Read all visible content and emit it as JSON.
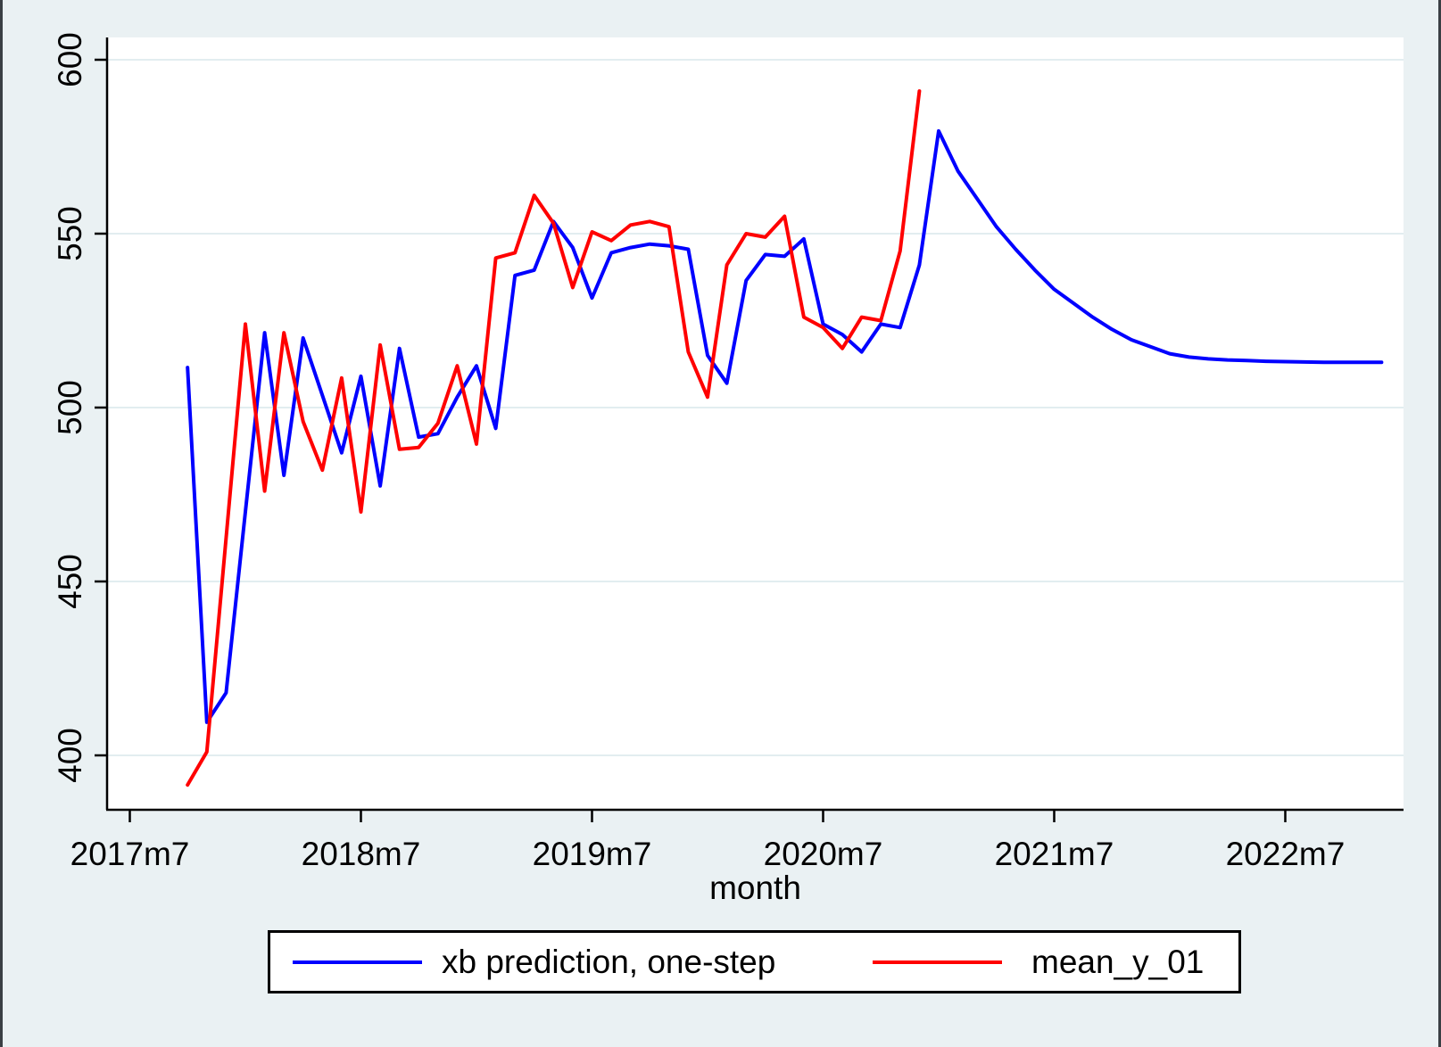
{
  "window": {
    "background_color": "#eaf1f3",
    "plot_background_color": "#ffffff",
    "gridline_color": "#e2edf0",
    "axis_color": "#000000",
    "edge_strip_color": "#3a3f44"
  },
  "chart_data": {
    "type": "line",
    "title": "",
    "xlabel": "month",
    "ylabel": "",
    "grid": true,
    "x_axis": {
      "tick_labels": [
        "2017m7",
        "2018m7",
        "2019m7",
        "2020m7",
        "2021m7",
        "2022m7"
      ]
    },
    "y_axis": {
      "tick_labels": [
        "400",
        "450",
        "500",
        "550",
        "600"
      ],
      "range_shown": [
        384,
        606
      ]
    },
    "legend": {
      "position": "bottom",
      "items": [
        "xb prediction, one-step",
        "mean_y_01"
      ]
    },
    "series": [
      {
        "name": "xb prediction, one-step",
        "color": "#0000ff",
        "points": [
          [
            "2017m10",
            511.5
          ],
          [
            "2017m11",
            409.5
          ],
          [
            "2017m12",
            418
          ],
          [
            "2018m1",
            470
          ],
          [
            "2018m2",
            521.5
          ],
          [
            "2018m3",
            480.5
          ],
          [
            "2018m4",
            520
          ],
          [
            "2018m5",
            503.5
          ],
          [
            "2018m6",
            487
          ],
          [
            "2018m7",
            509
          ],
          [
            "2018m8",
            477.5
          ],
          [
            "2018m9",
            517
          ],
          [
            "2018m10",
            491.5
          ],
          [
            "2018m11",
            492.5
          ],
          [
            "2018m12",
            503
          ],
          [
            "2019m1",
            512
          ],
          [
            "2019m2",
            494
          ],
          [
            "2019m3",
            538
          ],
          [
            "2019m4",
            539.5
          ],
          [
            "2019m5",
            553.5
          ],
          [
            "2019m6",
            546
          ],
          [
            "2019m7",
            531.5
          ],
          [
            "2019m8",
            544.5
          ],
          [
            "2019m9",
            546
          ],
          [
            "2019m10",
            547
          ],
          [
            "2019m11",
            546.5
          ],
          [
            "2019m12",
            545.5
          ],
          [
            "2020m1",
            515
          ],
          [
            "2020m2",
            507
          ],
          [
            "2020m3",
            536.5
          ],
          [
            "2020m4",
            544
          ],
          [
            "2020m5",
            543.5
          ],
          [
            "2020m6",
            548.5
          ],
          [
            "2020m7",
            524
          ],
          [
            "2020m8",
            521
          ],
          [
            "2020m9",
            516
          ],
          [
            "2020m10",
            524
          ],
          [
            "2020m11",
            523
          ],
          [
            "2020m12",
            541
          ],
          [
            "2021m1",
            579.5
          ],
          [
            "2021m2",
            568
          ],
          [
            "2021m3",
            560
          ],
          [
            "2021m4",
            552
          ],
          [
            "2021m5",
            545.5
          ],
          [
            "2021m6",
            539.5
          ],
          [
            "2021m7",
            534
          ],
          [
            "2021m8",
            530
          ],
          [
            "2021m9",
            526
          ],
          [
            "2021m10",
            522.5
          ],
          [
            "2021m11",
            519.5
          ],
          [
            "2021m12",
            517.5
          ],
          [
            "2022m1",
            515.5
          ],
          [
            "2022m2",
            514.5
          ],
          [
            "2022m3",
            514
          ],
          [
            "2022m4",
            513.7
          ],
          [
            "2022m5",
            513.5
          ],
          [
            "2022m6",
            513.3
          ],
          [
            "2022m7",
            513.2
          ],
          [
            "2022m8",
            513.1
          ],
          [
            "2022m9",
            513
          ],
          [
            "2022m10",
            513
          ],
          [
            "2022m11",
            513
          ],
          [
            "2022m12",
            513
          ]
        ]
      },
      {
        "name": "mean_y_01",
        "color": "#ff0000",
        "points": [
          [
            "2017m10",
            391.5
          ],
          [
            "2017m11",
            401
          ],
          [
            "2017m12",
            462.5
          ],
          [
            "2018m1",
            524
          ],
          [
            "2018m2",
            476
          ],
          [
            "2018m3",
            521.5
          ],
          [
            "2018m4",
            496
          ],
          [
            "2018m5",
            482
          ],
          [
            "2018m6",
            508.5
          ],
          [
            "2018m7",
            470
          ],
          [
            "2018m8",
            518
          ],
          [
            "2018m9",
            488
          ],
          [
            "2018m10",
            488.5
          ],
          [
            "2018m11",
            495.5
          ],
          [
            "2018m12",
            512
          ],
          [
            "2019m1",
            489.5
          ],
          [
            "2019m2",
            543
          ],
          [
            "2019m3",
            544.5
          ],
          [
            "2019m4",
            561
          ],
          [
            "2019m5",
            553
          ],
          [
            "2019m6",
            534.5
          ],
          [
            "2019m7",
            550.5
          ],
          [
            "2019m8",
            548
          ],
          [
            "2019m9",
            552.5
          ],
          [
            "2019m10",
            553.5
          ],
          [
            "2019m11",
            552
          ],
          [
            "2019m12",
            516
          ],
          [
            "2020m1",
            503
          ],
          [
            "2020m2",
            541
          ],
          [
            "2020m3",
            550
          ],
          [
            "2020m4",
            549
          ],
          [
            "2020m5",
            555
          ],
          [
            "2020m6",
            526
          ],
          [
            "2020m7",
            523
          ],
          [
            "2020m8",
            517
          ],
          [
            "2020m9",
            526
          ],
          [
            "2020m10",
            525
          ],
          [
            "2020m11",
            545
          ],
          [
            "2020m12",
            591
          ]
        ]
      }
    ]
  }
}
